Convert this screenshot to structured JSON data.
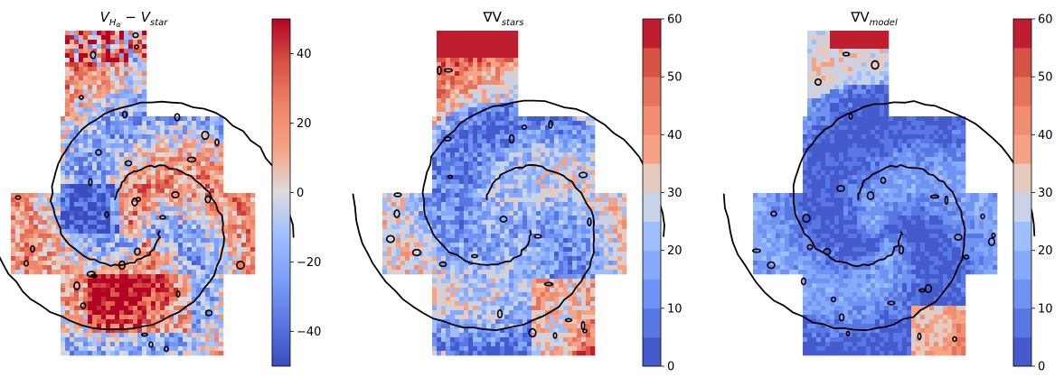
{
  "chart_data": [
    {
      "type": "heatmap",
      "title": "V_{H_α} − V_{star}",
      "title_parts": {
        "main1": "V",
        "sub1": "H",
        "subsub1": "α",
        "mid": " − ",
        "main2": "V",
        "sub2": "star"
      },
      "colormap": "coolwarm",
      "colorbar": {
        "range": [
          -50,
          50
        ],
        "ticks": [
          -40,
          -20,
          0,
          20,
          40
        ],
        "tick_labels": [
          "−40",
          "−20",
          "0",
          "20",
          "40"
        ],
        "discrete": false
      },
      "contours": "black",
      "axes": "off"
    },
    {
      "type": "heatmap",
      "title": "∇V_{stars}",
      "title_parts": {
        "main": "∇V",
        "sub": "stars"
      },
      "colormap": "coolwarm",
      "colorbar": {
        "range": [
          0,
          60
        ],
        "ticks": [
          0,
          10,
          20,
          30,
          40,
          50,
          60
        ],
        "tick_labels": [
          "0",
          "10",
          "20",
          "30",
          "40",
          "50",
          "60"
        ],
        "levels": 12,
        "discrete": true
      },
      "contours": "black",
      "axes": "off"
    },
    {
      "type": "heatmap",
      "title": "∇V_{model}",
      "title_parts": {
        "main": "∇V",
        "sub": "model"
      },
      "colormap": "coolwarm",
      "colorbar": {
        "range": [
          0,
          60
        ],
        "ticks": [
          0,
          10,
          20,
          30,
          40,
          50,
          60
        ],
        "tick_labels": [
          "0",
          "10",
          "20",
          "30",
          "40",
          "50",
          "60"
        ],
        "levels": 12,
        "discrete": true
      },
      "contours": "black",
      "axes": "off"
    }
  ]
}
